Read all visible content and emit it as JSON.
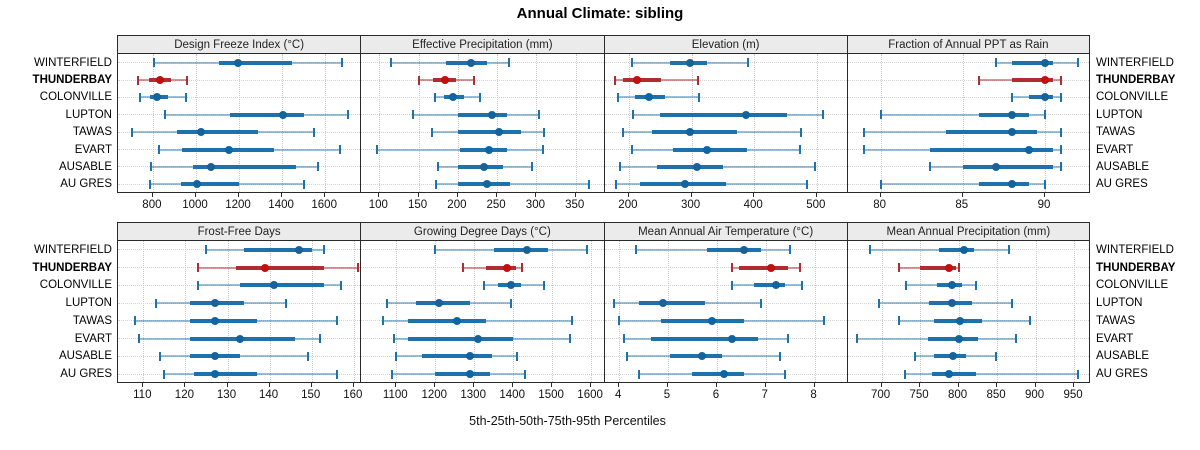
{
  "title": "Annual Climate: sibling",
  "xaxis_title": "5th-25th-50th-75th-95th Percentiles",
  "locations": [
    "WINTERFIELD",
    "THUNDERBAY",
    "COLONVILLE",
    "LUPTON",
    "TAWAS",
    "EVART",
    "AUSABLE",
    "AU GRES"
  ],
  "highlight_location": "THUNDERBAY",
  "colors": {
    "series_blue": "#1d72ae",
    "series_blue_whisker": "rgba(29,114,174,0.45)",
    "series_blue_dot": "#14639b",
    "highlight_red": "#b02c30",
    "highlight_red_whisker": "rgba(176,44,48,0.5)",
    "highlight_red_dot": "#c2100f",
    "header_bg": "#ebebeb",
    "grid": "#c9c9c9",
    "border": "#2a2a2a"
  },
  "chart_data": {
    "type": "interval",
    "note": "Each row shows 5th-25th-50th-75th-95th percentile summary (thin whisker = 5th-95th with end caps, thick bar = 25th-75th, dot = median). THUNDERBAY is highlighted red.",
    "percentiles": [
      5,
      25,
      50,
      75,
      95
    ],
    "legend_position": "none",
    "grid": "dotted",
    "layout": "2 rows x 4 columns of panels, location labels on both left and right sides",
    "panels": [
      {
        "title": "Design Freeze Index (°C)",
        "xlim": [
          638,
          1772
        ],
        "ticks": [
          800,
          1000,
          1200,
          1400,
          1600
        ],
        "series": [
          {
            "name": "WINTERFIELD",
            "values": [
              805,
              1105,
              1195,
              1445,
              1680
            ]
          },
          {
            "name": "THUNDERBAY",
            "values": [
              730,
              780,
              833,
              885,
              957
            ]
          },
          {
            "name": "COLONVILLE",
            "values": [
              740,
              785,
              820,
              870,
              955
            ]
          },
          {
            "name": "LUPTON",
            "values": [
              855,
              1160,
              1405,
              1500,
              1705
            ]
          },
          {
            "name": "TAWAS",
            "values": [
              705,
              910,
              1025,
              1290,
              1550
            ]
          },
          {
            "name": "EVART",
            "values": [
              830,
              935,
              1155,
              1360,
              1670
            ]
          },
          {
            "name": "AUSABLE",
            "values": [
              790,
              985,
              1070,
              1465,
              1565
            ]
          },
          {
            "name": "AU GRES",
            "values": [
              785,
              930,
              1005,
              1200,
              1500
            ]
          }
        ]
      },
      {
        "title": "Effective Precipitation (mm)",
        "xlim": [
          77,
          388
        ],
        "ticks": [
          100,
          150,
          200,
          250,
          300,
          350
        ],
        "series": [
          {
            "name": "WINTERFIELD",
            "values": [
              115,
              185,
              217,
              237,
              265
            ]
          },
          {
            "name": "THUNDERBAY",
            "values": [
              151,
              168,
              184,
              198,
              221
            ]
          },
          {
            "name": "COLONVILLE",
            "values": [
              171,
              182,
              194,
              208,
              228
            ]
          },
          {
            "name": "LUPTON",
            "values": [
              143,
              200,
              243,
              262,
              303
            ]
          },
          {
            "name": "TAWAS",
            "values": [
              167,
              200,
              253,
              280,
              310
            ]
          },
          {
            "name": "EVART",
            "values": [
              97,
              203,
              240,
              262,
              308
            ]
          },
          {
            "name": "AUSABLE",
            "values": [
              175,
              200,
              233,
              258,
              295
            ]
          },
          {
            "name": "AU GRES",
            "values": [
              172,
              200,
              237,
              267,
              367
            ]
          }
        ]
      },
      {
        "title": "Elevation (m)",
        "xlim": [
          161,
          551
        ],
        "ticks": [
          200,
          300,
          400,
          500
        ],
        "series": [
          {
            "name": "WINTERFIELD",
            "values": [
              205,
              265,
              297,
              325,
              390
            ]
          },
          {
            "name": "THUNDERBAY",
            "values": [
              178,
              190,
              213,
              252,
              310
            ]
          },
          {
            "name": "COLONVILLE",
            "values": [
              182,
              210,
              232,
              257,
              312
            ]
          },
          {
            "name": "LUPTON",
            "values": [
              207,
              250,
              387,
              452,
              510
            ]
          },
          {
            "name": "TAWAS",
            "values": [
              190,
              237,
              298,
              372,
              475
            ]
          },
          {
            "name": "EVART",
            "values": [
              205,
              270,
              325,
              388,
              473
            ]
          },
          {
            "name": "AUSABLE",
            "values": [
              185,
              245,
              308,
              350,
              497
            ]
          },
          {
            "name": "AU GRES",
            "values": [
              180,
              218,
              290,
              355,
              485
            ]
          }
        ]
      },
      {
        "title": "Fraction of Annual PPT as Rain",
        "xlim": [
          78,
          92.8
        ],
        "ticks": [
          80,
          85,
          90
        ],
        "series": [
          {
            "name": "WINTERFIELD",
            "values": [
              87,
              88,
              90,
              90.5,
              92
            ]
          },
          {
            "name": "THUNDERBAY",
            "values": [
              86,
              88,
              90,
              90.5,
              91
            ]
          },
          {
            "name": "COLONVILLE",
            "values": [
              88,
              89,
              90,
              90.5,
              91
            ]
          },
          {
            "name": "LUPTON",
            "values": [
              80,
              86,
              88,
              89,
              90
            ]
          },
          {
            "name": "TAWAS",
            "values": [
              79,
              84,
              88,
              89.5,
              91
            ]
          },
          {
            "name": "EVART",
            "values": [
              79,
              83,
              89,
              90.5,
              91
            ]
          },
          {
            "name": "AUSABLE",
            "values": [
              83,
              85,
              87,
              90.5,
              91
            ]
          },
          {
            "name": "AU GRES",
            "values": [
              80,
              86,
              88,
              89,
              90
            ]
          }
        ]
      },
      {
        "title": "Frost-Free Days",
        "xlim": [
          104,
          162
        ],
        "ticks": [
          110,
          120,
          130,
          140,
          150,
          160
        ],
        "series": [
          {
            "name": "WINTERFIELD",
            "values": [
              125,
              134,
              147,
              150,
              153
            ]
          },
          {
            "name": "THUNDERBAY",
            "values": [
              123,
              132,
              139,
              153,
              161
            ]
          },
          {
            "name": "COLONVILLE",
            "values": [
              123,
              133,
              141,
              153,
              157
            ]
          },
          {
            "name": "LUPTON",
            "values": [
              113,
              121,
              127,
              134,
              144
            ]
          },
          {
            "name": "TAWAS",
            "values": [
              108,
              121,
              127,
              137,
              156
            ]
          },
          {
            "name": "EVART",
            "values": [
              109,
              121,
              133,
              146,
              152
            ]
          },
          {
            "name": "AUSABLE",
            "values": [
              114,
              121,
              127,
              133,
              149
            ]
          },
          {
            "name": "AU GRES",
            "values": [
              115,
              122,
              127,
              137,
              156
            ]
          }
        ]
      },
      {
        "title": "Growing Degree Days (°C)",
        "xlim": [
          1010,
          1637
        ],
        "ticks": [
          1100,
          1200,
          1300,
          1400,
          1500,
          1600
        ],
        "series": [
          {
            "name": "WINTERFIELD",
            "values": [
              1200,
              1350,
              1435,
              1490,
              1590
            ]
          },
          {
            "name": "THUNDERBAY",
            "values": [
              1270,
              1330,
              1385,
              1408,
              1422
            ]
          },
          {
            "name": "COLONVILLE",
            "values": [
              1325,
              1360,
              1395,
              1420,
              1480
            ]
          },
          {
            "name": "LUPTON",
            "values": [
              1075,
              1150,
              1210,
              1290,
              1395
            ]
          },
          {
            "name": "TAWAS",
            "values": [
              1065,
              1130,
              1255,
              1330,
              1550
            ]
          },
          {
            "name": "EVART",
            "values": [
              1095,
              1130,
              1310,
              1400,
              1545
            ]
          },
          {
            "name": "AUSABLE",
            "values": [
              1100,
              1165,
              1288,
              1345,
              1410
            ]
          },
          {
            "name": "AU GRES",
            "values": [
              1090,
              1200,
              1288,
              1340,
              1430
            ]
          }
        ]
      },
      {
        "title": "Mean Annual Air Temperature (°C)",
        "xlim": [
          3.7,
          8.7
        ],
        "ticks": [
          4,
          5,
          6,
          7,
          8
        ],
        "series": [
          {
            "name": "WINTERFIELD",
            "values": [
              4.35,
              5.8,
              6.55,
              6.9,
              7.5
            ]
          },
          {
            "name": "THUNDERBAY",
            "values": [
              6.3,
              6.45,
              7.1,
              7.45,
              7.7
            ]
          },
          {
            "name": "COLONVILLE",
            "values": [
              6.3,
              6.75,
              7.2,
              7.4,
              7.75
            ]
          },
          {
            "name": "LUPTON",
            "values": [
              3.9,
              4.4,
              4.9,
              5.75,
              6.9
            ]
          },
          {
            "name": "TAWAS",
            "values": [
              4.0,
              4.85,
              5.9,
              6.55,
              8.2
            ]
          },
          {
            "name": "EVART",
            "values": [
              4.1,
              4.65,
              6.3,
              6.85,
              7.45
            ]
          },
          {
            "name": "AUSABLE",
            "values": [
              4.15,
              5.05,
              5.7,
              6.1,
              7.3
            ]
          },
          {
            "name": "AU GRES",
            "values": [
              4.4,
              5.5,
              6.15,
              6.55,
              7.4
            ]
          }
        ]
      },
      {
        "title": "Mean Annual Precipitation (mm)",
        "xlim": [
          656,
          972
        ],
        "ticks": [
          700,
          750,
          800,
          850,
          900,
          950
        ],
        "series": [
          {
            "name": "WINTERFIELD",
            "values": [
              685,
              775,
              807,
              820,
              865
            ]
          },
          {
            "name": "THUNDERBAY",
            "values": [
              722,
              750,
              788,
              796,
              801
            ]
          },
          {
            "name": "COLONVILLE",
            "values": [
              732,
              772,
              792,
              805,
              822
            ]
          },
          {
            "name": "LUPTON",
            "values": [
              697,
              762,
              792,
              818,
              870
            ]
          },
          {
            "name": "TAWAS",
            "values": [
              722,
              768,
              802,
              830,
              893
            ]
          },
          {
            "name": "EVART",
            "values": [
              668,
              760,
              800,
              825,
              875
            ]
          },
          {
            "name": "AUSABLE",
            "values": [
              743,
              768,
              793,
              810,
              848
            ]
          },
          {
            "name": "AU GRES",
            "values": [
              730,
              765,
              788,
              822,
              955
            ]
          }
        ]
      }
    ]
  }
}
